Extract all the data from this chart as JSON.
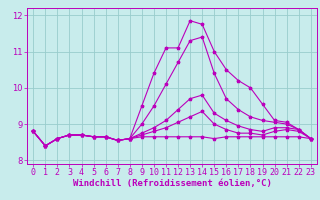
{
  "xlabel": "Windchill (Refroidissement éolien,°C)",
  "bg_color": "#c8ecec",
  "line_color": "#bb00bb",
  "grid_color": "#99cccc",
  "x_hours": [
    0,
    1,
    2,
    3,
    4,
    5,
    6,
    7,
    8,
    9,
    10,
    11,
    12,
    13,
    14,
    15,
    16,
    17,
    18,
    19,
    20,
    21,
    22,
    23
  ],
  "series": [
    [
      8.8,
      8.4,
      8.6,
      8.7,
      8.7,
      8.65,
      8.65,
      8.55,
      8.6,
      9.5,
      10.4,
      11.1,
      11.1,
      11.85,
      11.75,
      11.0,
      10.5,
      10.2,
      10.0,
      9.55,
      9.1,
      9.05,
      8.85,
      8.6
    ],
    [
      8.8,
      8.4,
      8.6,
      8.7,
      8.7,
      8.65,
      8.65,
      8.55,
      8.6,
      9.0,
      9.5,
      10.1,
      10.7,
      11.3,
      11.4,
      10.4,
      9.7,
      9.4,
      9.2,
      9.1,
      9.05,
      9.0,
      8.85,
      8.6
    ],
    [
      8.8,
      8.4,
      8.6,
      8.7,
      8.7,
      8.65,
      8.65,
      8.55,
      8.6,
      8.75,
      8.9,
      9.1,
      9.4,
      9.7,
      9.8,
      9.3,
      9.1,
      8.95,
      8.85,
      8.8,
      8.9,
      8.9,
      8.85,
      8.6
    ],
    [
      8.8,
      8.4,
      8.6,
      8.7,
      8.7,
      8.65,
      8.65,
      8.55,
      8.6,
      8.65,
      8.65,
      8.65,
      8.65,
      8.65,
      8.65,
      8.6,
      8.65,
      8.65,
      8.65,
      8.65,
      8.65,
      8.65,
      8.65,
      8.6
    ],
    [
      8.8,
      8.4,
      8.6,
      8.7,
      8.7,
      8.65,
      8.65,
      8.55,
      8.6,
      8.7,
      8.8,
      8.9,
      9.05,
      9.2,
      9.35,
      9.0,
      8.85,
      8.75,
      8.75,
      8.7,
      8.8,
      8.85,
      8.8,
      8.6
    ]
  ],
  "ylim": [
    7.9,
    12.2
  ],
  "yticks": [
    8,
    9,
    10,
    11,
    12
  ],
  "xticks": [
    0,
    1,
    2,
    3,
    4,
    5,
    6,
    7,
    8,
    9,
    10,
    11,
    12,
    13,
    14,
    15,
    16,
    17,
    18,
    19,
    20,
    21,
    22,
    23
  ],
  "xlabel_fontsize": 6.5,
  "tick_fontsize": 6,
  "marker_size": 2.5,
  "line_width": 0.8
}
